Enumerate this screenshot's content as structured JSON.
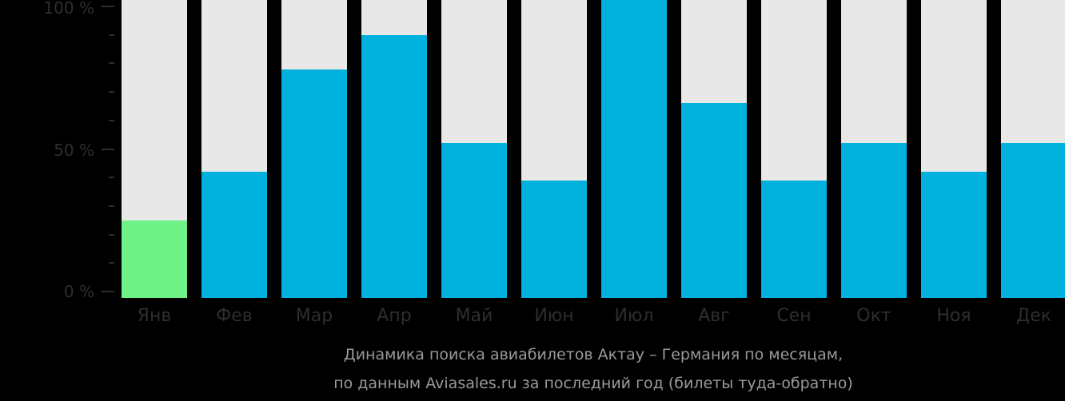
{
  "chart_data": {
    "type": "bar",
    "title": "Динамика поиска авиабилетов Актау – Германия по месяцам, по данным Aviasales.ru за последний год (билеты туда-обратно)",
    "xlabel": "",
    "ylabel": "",
    "ylim": [
      0,
      100
    ],
    "yticks": [
      "0 %",
      "50 %",
      "100 %"
    ],
    "categories": [
      "Янв",
      "Фев",
      "Мар",
      "Апр",
      "Май",
      "Июн",
      "Июл",
      "Авг",
      "Сен",
      "Окт",
      "Ноя",
      "Дек"
    ],
    "values": [
      25,
      42,
      78,
      90,
      52,
      39,
      100,
      66,
      39,
      52,
      42,
      52
    ],
    "highlight_index": 0,
    "grid": false,
    "legend": null,
    "colors": {
      "bar": "#00b0dd",
      "highlight": "#6ef288",
      "background_bar": "#e8e8e8"
    }
  },
  "axis": {
    "y_labels": {
      "top": "100 %",
      "mid": "50 %",
      "bottom": "0 %"
    }
  },
  "caption": {
    "line1": "Динамика поиска авиабилетов Актау – Германия по месяцам,",
    "line2": "по данным Aviasales.ru за последний год (билеты туда-обратно)"
  }
}
